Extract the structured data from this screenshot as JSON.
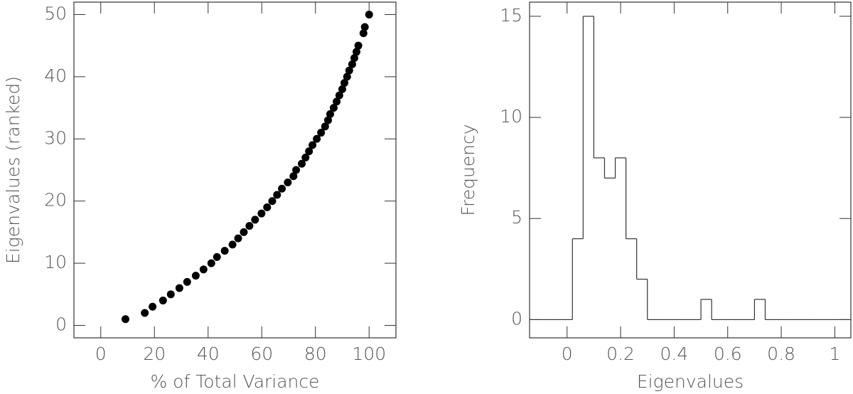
{
  "chart_data": [
    {
      "type": "scatter",
      "xlabel": "% of Total Variance",
      "ylabel": "Eigenvalues (ranked)",
      "color": "#000000",
      "x": [
        9.2,
        16.4,
        19.3,
        23.2,
        26.1,
        29.3,
        32.2,
        35.4,
        38.3,
        41.2,
        43.3,
        46.2,
        49.1,
        51.2,
        53.3,
        55.4,
        57.5,
        59.9,
        62.0,
        63.9,
        65.7,
        67.5,
        69.7,
        71.8,
        72.8,
        74.9,
        76.3,
        77.6,
        78.9,
        80.5,
        82.1,
        83.6,
        84.7,
        85.5,
        86.8,
        87.9,
        88.9,
        90.0,
        90.8,
        91.8,
        92.6,
        93.7,
        94.5,
        95.3,
        96.0,
        97.9,
        98.4,
        100
      ],
      "y": [
        1,
        2,
        3,
        4,
        5,
        6,
        7,
        8,
        9,
        10,
        11,
        12,
        13,
        14,
        15,
        16,
        17,
        18,
        19,
        20,
        21,
        22,
        23,
        24,
        25,
        26,
        27,
        28,
        29,
        30,
        31,
        32,
        33,
        34,
        35,
        36,
        37,
        38,
        39,
        40,
        41,
        42,
        43,
        44,
        45,
        47,
        48,
        50
      ],
      "xlim": [
        -10,
        110
      ],
      "ylim": [
        -2,
        52
      ],
      "xticks": [
        0,
        20,
        40,
        60,
        80,
        100
      ],
      "yticks": [
        0,
        10,
        20,
        30,
        40,
        50
      ]
    },
    {
      "type": "histogram",
      "xlabel": "Eigenvalues",
      "ylabel": "Frequency",
      "color": "#333333",
      "bins": [
        -0.14,
        -0.1,
        -0.06,
        -0.02,
        0.02,
        0.06,
        0.1,
        0.14,
        0.18,
        0.22,
        0.26,
        0.3,
        0.34,
        0.38,
        0.42,
        0.46,
        0.5,
        0.54,
        0.58,
        0.62,
        0.66,
        0.7,
        0.74,
        0.78,
        0.82,
        0.86,
        0.9,
        0.94,
        0.98,
        1.02,
        1.06
      ],
      "values": [
        0,
        0,
        0,
        0,
        4,
        15,
        8,
        7,
        8,
        4,
        2,
        0,
        0,
        0,
        0,
        0,
        1,
        0,
        0,
        0,
        0,
        1,
        0,
        0,
        0,
        0,
        0,
        0,
        0,
        0
      ],
      "xlim": [
        -0.14,
        1.06
      ],
      "ylim": [
        -0.9,
        15.7
      ],
      "xticks": [
        0,
        0.2,
        0.4,
        0.6,
        0.8,
        1
      ],
      "yticks": [
        0,
        5,
        10,
        15
      ]
    }
  ]
}
